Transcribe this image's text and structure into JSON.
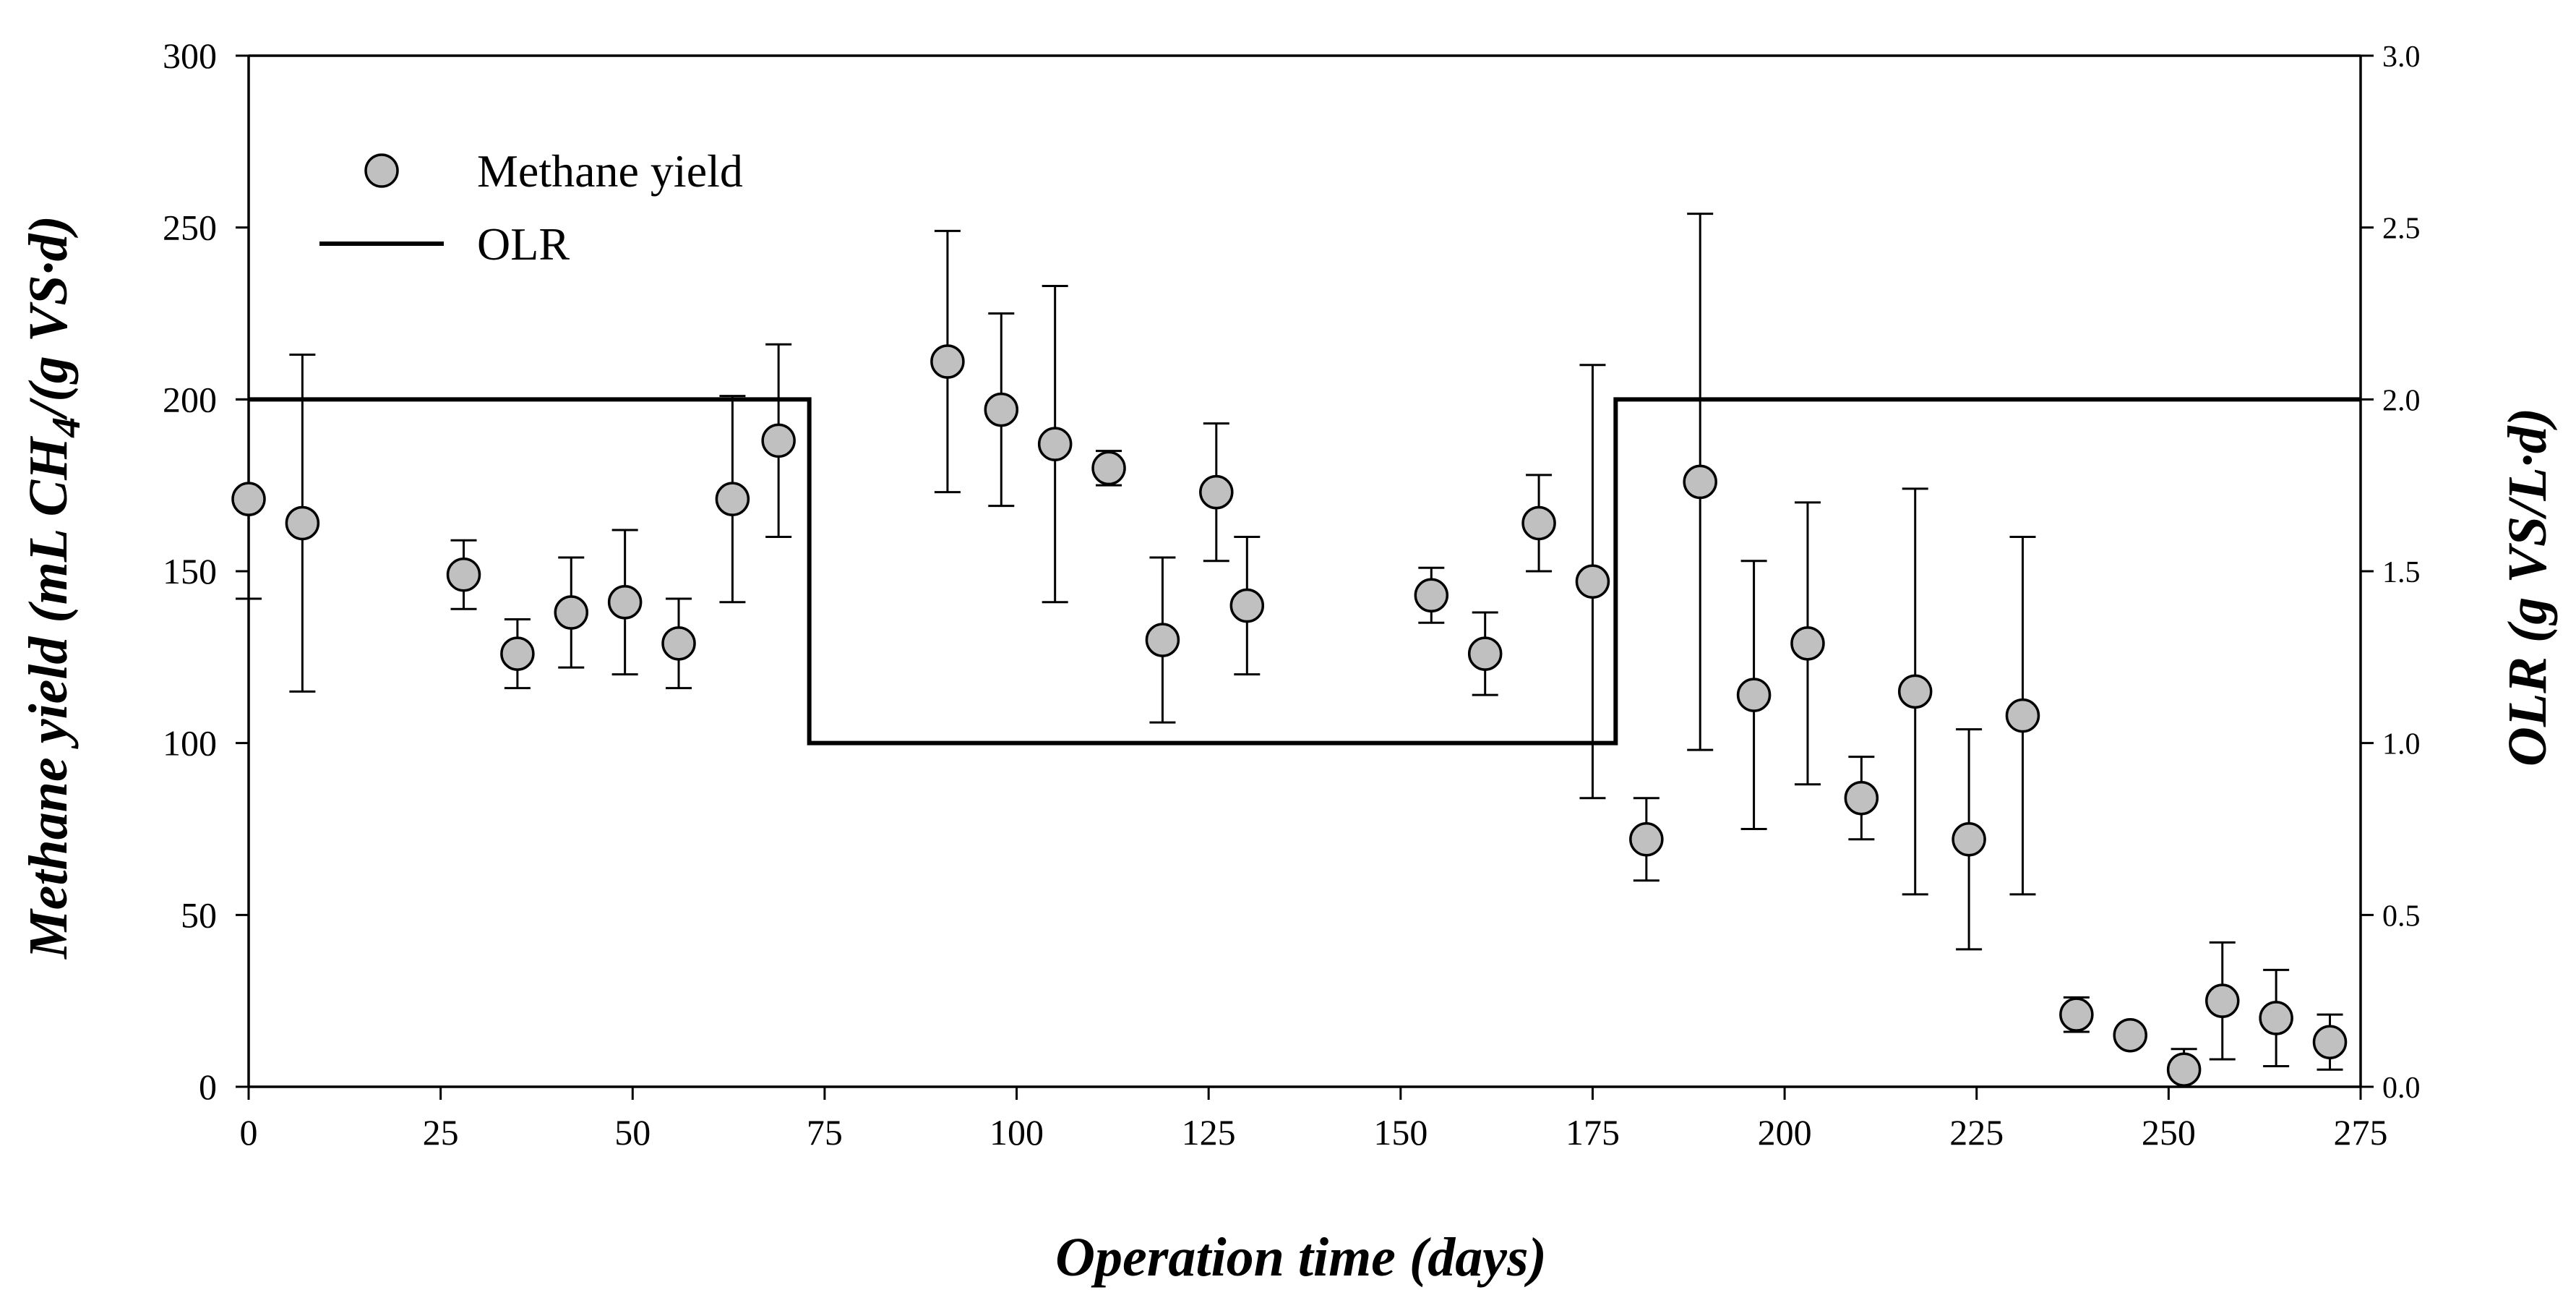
{
  "chart_data": {
    "type": "scatter",
    "title": "",
    "xlabel": "Operation time (days)",
    "ylabel_left": {
      "main": "Methane yield (mL CH",
      "sub": "4",
      "tail": "/(g VS·d)"
    },
    "ylabel_right": "OLR (g VS/L·d)",
    "xlim": [
      0,
      275
    ],
    "ylim": [
      0,
      300
    ],
    "ylim_right": [
      0,
      3.0
    ],
    "x_ticks": [
      0,
      25,
      50,
      75,
      100,
      125,
      150,
      175,
      200,
      225,
      250,
      275
    ],
    "x_tick_labels": [
      "0",
      "25",
      "50",
      "75",
      "100",
      "125",
      "150",
      "175",
      "200",
      "225",
      "250",
      "275"
    ],
    "y_ticks": [
      0,
      50,
      100,
      150,
      200,
      250,
      300
    ],
    "y_tick_labels": [
      "0",
      "50",
      "100",
      "150",
      "200",
      "250",
      "300"
    ],
    "y_right_ticks": [
      0,
      0.5,
      1.0,
      1.5,
      2.0,
      2.5,
      3.0
    ],
    "y_right_tick_labels": [
      "0.0",
      "0.5",
      "1.0",
      "1.5",
      "2.0",
      "2.5",
      "3.0"
    ],
    "grid": false,
    "legend_position": "top-left",
    "series": [
      {
        "name": "Methane yield",
        "kind": "scatter-errorbar",
        "color": "#c0c0c0",
        "points": [
          {
            "x": 0,
            "y": 171,
            "err": 29
          },
          {
            "x": 7,
            "y": 164,
            "err": 49
          },
          {
            "x": 28,
            "y": 149,
            "err": 10
          },
          {
            "x": 35,
            "y": 126,
            "err": 10
          },
          {
            "x": 42,
            "y": 138,
            "err": 16
          },
          {
            "x": 49,
            "y": 141,
            "err": 21
          },
          {
            "x": 56,
            "y": 129,
            "err": 13
          },
          {
            "x": 63,
            "y": 171,
            "err": 30
          },
          {
            "x": 69,
            "y": 188,
            "err": 28
          },
          {
            "x": 91,
            "y": 211,
            "err": 38
          },
          {
            "x": 98,
            "y": 197,
            "err": 28
          },
          {
            "x": 105,
            "y": 187,
            "err": 46
          },
          {
            "x": 112,
            "y": 180,
            "err": 5
          },
          {
            "x": 119,
            "y": 130,
            "err": 24
          },
          {
            "x": 126,
            "y": 173,
            "err": 20
          },
          {
            "x": 130,
            "y": 140,
            "err": 20
          },
          {
            "x": 154,
            "y": 143,
            "err": 8
          },
          {
            "x": 161,
            "y": 126,
            "err": 12
          },
          {
            "x": 168,
            "y": 164,
            "err": 14
          },
          {
            "x": 175,
            "y": 147,
            "err": 63
          },
          {
            "x": 182,
            "y": 72,
            "err": 12
          },
          {
            "x": 189,
            "y": 176,
            "err": 78
          },
          {
            "x": 196,
            "y": 114,
            "err": 39
          },
          {
            "x": 203,
            "y": 129,
            "err": 41
          },
          {
            "x": 210,
            "y": 84,
            "err": 12
          },
          {
            "x": 217,
            "y": 115,
            "err": 59
          },
          {
            "x": 224,
            "y": 72,
            "err": 32
          },
          {
            "x": 231,
            "y": 108,
            "err": 52
          },
          {
            "x": 238,
            "y": 21,
            "err": 5
          },
          {
            "x": 245,
            "y": 15,
            "err": 2
          },
          {
            "x": 252,
            "y": 5,
            "err": 6
          },
          {
            "x": 257,
            "y": 25,
            "err": 17
          },
          {
            "x": 264,
            "y": 20,
            "err": 14
          },
          {
            "x": 271,
            "y": 13,
            "err": 8
          }
        ]
      },
      {
        "name": "OLR",
        "kind": "step-line",
        "axis": "right",
        "color": "#000000",
        "points": [
          {
            "x": 0,
            "y": 2.0
          },
          {
            "x": 73,
            "y": 2.0
          },
          {
            "x": 73,
            "y": 1.0
          },
          {
            "x": 178,
            "y": 1.0
          },
          {
            "x": 178,
            "y": 2.0
          },
          {
            "x": 275,
            "y": 2.0
          }
        ]
      }
    ],
    "legend": {
      "scatter_label": "Methane yield",
      "line_label": "OLR"
    }
  }
}
